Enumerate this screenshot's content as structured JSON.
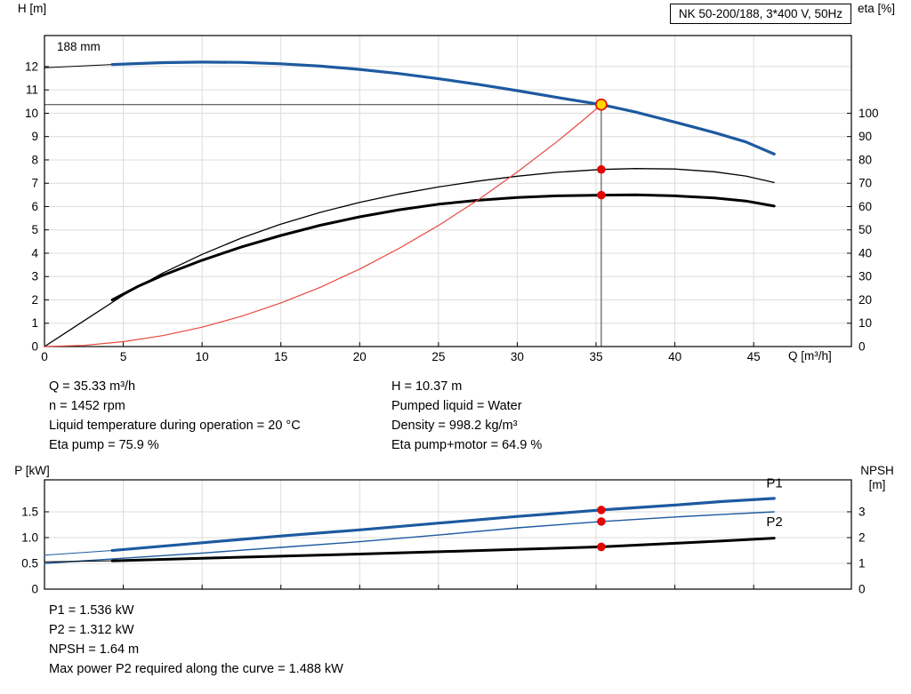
{
  "palette": {
    "blue": "#1d5aa0",
    "black": "#000000",
    "red": "#e8483f",
    "dot": "#e10600",
    "duty_fill": "#ffd800",
    "duty_ring": "#e10600"
  },
  "info_top_left": [
    "Q = 35.33 m³/h",
    "n = 1452 rpm",
    "Liquid temperature during operation = 20 °C",
    "Eta pump = 75.9 %"
  ],
  "info_top_right": [
    "H = 10.37 m",
    "Pumped liquid = Water",
    "Density = 998.2 kg/m³",
    "Eta pump+motor = 64.9 %"
  ],
  "info_bottom": [
    "P1 = 1.536 kW",
    "P2 = 1.312 kW",
    "NPSH = 1.64 m",
    "Max power P2 required along the curve = 1.488 kW"
  ],
  "chart_data": [
    {
      "type": "line",
      "title": "NK 50-200/188, 3*400 V, 50Hz",
      "curve_label": "188 mm",
      "xlabel": "Q [m³/h]",
      "ylabel_left": "H [m]",
      "ylabel_right": "eta [%]",
      "xlim": [
        0,
        51.2
      ],
      "ylim_left": [
        0,
        13.33
      ],
      "ylim_right": [
        0,
        133.3
      ],
      "grid": true,
      "x_ticks": [
        {
          "v": 0,
          "t": "0"
        },
        {
          "v": 5,
          "t": "5"
        },
        {
          "v": 10,
          "t": "10"
        },
        {
          "v": 15,
          "t": "15"
        },
        {
          "v": 20,
          "t": "20"
        },
        {
          "v": 25,
          "t": "25"
        },
        {
          "v": 30,
          "t": "30"
        },
        {
          "v": 35,
          "t": "35"
        },
        {
          "v": 40,
          "t": "40"
        },
        {
          "v": 45,
          "t": "45"
        }
      ],
      "y_ticks_left": [
        {
          "v": 0,
          "t": "0"
        },
        {
          "v": 1,
          "t": "1"
        },
        {
          "v": 2,
          "t": "2"
        },
        {
          "v": 3,
          "t": "3"
        },
        {
          "v": 4,
          "t": "4"
        },
        {
          "v": 5,
          "t": "5"
        },
        {
          "v": 6,
          "t": "6"
        },
        {
          "v": 7,
          "t": "7"
        },
        {
          "v": 8,
          "t": "8"
        },
        {
          "v": 9,
          "t": "9"
        },
        {
          "v": 10,
          "t": "10"
        },
        {
          "v": 11,
          "t": "11"
        },
        {
          "v": 12,
          "t": "12"
        }
      ],
      "y_ticks_right": [
        {
          "v": 0,
          "t": "0"
        },
        {
          "v": 10,
          "t": "10"
        },
        {
          "v": 20,
          "t": "20"
        },
        {
          "v": 30,
          "t": "30"
        },
        {
          "v": 40,
          "t": "40"
        },
        {
          "v": 50,
          "t": "50"
        },
        {
          "v": 60,
          "t": "60"
        },
        {
          "v": 70,
          "t": "70"
        },
        {
          "v": 80,
          "t": "80"
        },
        {
          "v": 90,
          "t": "90"
        },
        {
          "v": 100,
          "t": "100"
        }
      ],
      "duty_point": {
        "q": 35.33,
        "h": 10.37
      },
      "series": [
        {
          "id": "head-curve-low-flow",
          "name": "Head curve below min flow",
          "axis": "left",
          "color": "black",
          "width": 1,
          "points": [
            [
              0,
              11.95
            ],
            [
              2.2,
              12.02
            ],
            [
              4.3,
              12.09
            ]
          ]
        },
        {
          "id": "head-curve",
          "name": "Head 188 mm",
          "axis": "left",
          "color": "blue",
          "width": 3.2,
          "points": [
            [
              4.3,
              12.09
            ],
            [
              7.5,
              12.17
            ],
            [
              10,
              12.19
            ],
            [
              12.5,
              12.18
            ],
            [
              15,
              12.12
            ],
            [
              17.5,
              12.02
            ],
            [
              20,
              11.88
            ],
            [
              22.5,
              11.7
            ],
            [
              25,
              11.48
            ],
            [
              27.5,
              11.24
            ],
            [
              30,
              10.97
            ],
            [
              32.5,
              10.68
            ],
            [
              35.33,
              10.37
            ],
            [
              37.5,
              10.05
            ],
            [
              40,
              9.62
            ],
            [
              42.5,
              9.17
            ],
            [
              44.5,
              8.77
            ],
            [
              46.3,
              8.25
            ]
          ]
        },
        {
          "id": "eta-pump-curve",
          "name": "Eta pump",
          "axis": "right",
          "color": "black",
          "width": 1.3,
          "points": [
            [
              0,
              0
            ],
            [
              2.5,
              11
            ],
            [
              5,
              22
            ],
            [
              7.5,
              31.5
            ],
            [
              10,
              39.5
            ],
            [
              12.5,
              46.5
            ],
            [
              15,
              52.5
            ],
            [
              17.5,
              57.5
            ],
            [
              20,
              61.8
            ],
            [
              22.5,
              65.4
            ],
            [
              25,
              68.4
            ],
            [
              27.5,
              70.9
            ],
            [
              30,
              73
            ],
            [
              32.5,
              74.7
            ],
            [
              35.33,
              75.9
            ],
            [
              37.5,
              76.3
            ],
            [
              40,
              76.1
            ],
            [
              42.5,
              74.9
            ],
            [
              44.5,
              73.1
            ],
            [
              46.3,
              70.3
            ]
          ]
        },
        {
          "id": "eta-pump-motor-curve",
          "name": "Eta pump+motor",
          "axis": "right",
          "color": "black",
          "width": 3,
          "points": [
            [
              4.3,
              20
            ],
            [
              6,
              26
            ],
            [
              7.5,
              30.5
            ],
            [
              10,
              37
            ],
            [
              12.5,
              42.7
            ],
            [
              15,
              47.6
            ],
            [
              17.5,
              52
            ],
            [
              20,
              55.6
            ],
            [
              22.5,
              58.6
            ],
            [
              25,
              61
            ],
            [
              27.5,
              62.7
            ],
            [
              30,
              63.9
            ],
            [
              32.5,
              64.6
            ],
            [
              35.33,
              64.9
            ],
            [
              37.5,
              65
            ],
            [
              40,
              64.6
            ],
            [
              42.5,
              63.7
            ],
            [
              44.5,
              62.4
            ],
            [
              46.3,
              60.2
            ]
          ]
        },
        {
          "id": "system-curve",
          "name": "System curve to duty point",
          "axis": "left",
          "color": "red",
          "width": 1.2,
          "points": [
            [
              0,
              0
            ],
            [
              2.5,
              0.05
            ],
            [
              5,
              0.21
            ],
            [
              7.5,
              0.47
            ],
            [
              10,
              0.83
            ],
            [
              12.5,
              1.3
            ],
            [
              15,
              1.87
            ],
            [
              17.5,
              2.54
            ],
            [
              20,
              3.32
            ],
            [
              22.5,
              4.21
            ],
            [
              25,
              5.19
            ],
            [
              27.5,
              6.28
            ],
            [
              30,
              7.48
            ],
            [
              32.5,
              8.77
            ],
            [
              34,
              9.6
            ],
            [
              35.33,
              10.37
            ]
          ]
        }
      ],
      "markers": [
        {
          "q": 35.33,
          "v": 10.37,
          "axis": "left",
          "style": "duty"
        },
        {
          "q": 35.33,
          "v": 75.9,
          "axis": "right",
          "style": "dot"
        },
        {
          "q": 35.33,
          "v": 64.9,
          "axis": "right",
          "style": "dot"
        }
      ]
    },
    {
      "type": "line",
      "title": "",
      "xlabel": "",
      "ylabel_left": "P [kW]",
      "ylabel_right": "NPSH [m]",
      "xlim": [
        0,
        51.2
      ],
      "ylim_left": [
        0,
        2.12
      ],
      "ylim_right": [
        0,
        4.24
      ],
      "grid": true,
      "x_ticks": [
        {
          "v": 0,
          "t": ""
        },
        {
          "v": 5,
          "t": ""
        },
        {
          "v": 10,
          "t": ""
        },
        {
          "v": 15,
          "t": ""
        },
        {
          "v": 20,
          "t": ""
        },
        {
          "v": 25,
          "t": ""
        },
        {
          "v": 30,
          "t": ""
        },
        {
          "v": 35,
          "t": ""
        },
        {
          "v": 40,
          "t": ""
        },
        {
          "v": 45,
          "t": ""
        }
      ],
      "y_ticks_left": [
        {
          "v": 0,
          "t": "0"
        },
        {
          "v": 0.5,
          "t": "0.5"
        },
        {
          "v": 1,
          "t": "1.0"
        },
        {
          "v": 1.5,
          "t": "1.5"
        }
      ],
      "y_ticks_right": [
        {
          "v": 0,
          "t": "0"
        },
        {
          "v": 1,
          "t": "1"
        },
        {
          "v": 2,
          "t": "2"
        },
        {
          "v": 3,
          "t": "3"
        }
      ],
      "series": [
        {
          "id": "p1-curve-low-flow",
          "name": "P1 below min flow",
          "axis": "left",
          "color": "blue",
          "width": 1,
          "points": [
            [
              0,
              0.66
            ],
            [
              4.3,
              0.75
            ]
          ]
        },
        {
          "id": "p1-curve",
          "name": "P1",
          "axis": "left",
          "color": "blue",
          "width": 3.2,
          "label": "P1",
          "label_pos": [
            45.8,
            1.97
          ],
          "points": [
            [
              4.3,
              0.75
            ],
            [
              10,
              0.9
            ],
            [
              15,
              1.03
            ],
            [
              20,
              1.15
            ],
            [
              25,
              1.28
            ],
            [
              30,
              1.41
            ],
            [
              35.33,
              1.536
            ],
            [
              40,
              1.63
            ],
            [
              43,
              1.7
            ],
            [
              46.3,
              1.76
            ]
          ]
        },
        {
          "id": "p2-curve",
          "name": "P2",
          "axis": "left",
          "color": "blue",
          "width": 1.4,
          "label": "P2",
          "label_pos": [
            45.8,
            1.22
          ],
          "points": [
            [
              0,
              0.5
            ],
            [
              5,
              0.6
            ],
            [
              10,
              0.7
            ],
            [
              15,
              0.81
            ],
            [
              20,
              0.92
            ],
            [
              25,
              1.05
            ],
            [
              30,
              1.19
            ],
            [
              35.33,
              1.312
            ],
            [
              40,
              1.4
            ],
            [
              43,
              1.45
            ],
            [
              46.3,
              1.5
            ]
          ]
        },
        {
          "id": "npsh-curve-low-flow",
          "name": "NPSH below min flow",
          "axis": "right",
          "color": "black",
          "width": 1,
          "points": [
            [
              0,
              1.06
            ],
            [
              4.3,
              1.1
            ]
          ]
        },
        {
          "id": "npsh-curve",
          "name": "NPSH",
          "axis": "right",
          "color": "black",
          "width": 3,
          "points": [
            [
              4.3,
              1.1
            ],
            [
              10,
              1.2
            ],
            [
              15,
              1.28
            ],
            [
              20,
              1.36
            ],
            [
              25,
              1.45
            ],
            [
              30,
              1.54
            ],
            [
              35.33,
              1.64
            ],
            [
              40,
              1.78
            ],
            [
              43,
              1.87
            ],
            [
              46.3,
              1.98
            ]
          ]
        }
      ],
      "markers": [
        {
          "q": 35.33,
          "v": 1.536,
          "axis": "left",
          "style": "dot"
        },
        {
          "q": 35.33,
          "v": 1.312,
          "axis": "left",
          "style": "dot"
        },
        {
          "q": 35.33,
          "v": 1.64,
          "axis": "right",
          "style": "dot"
        }
      ]
    }
  ]
}
